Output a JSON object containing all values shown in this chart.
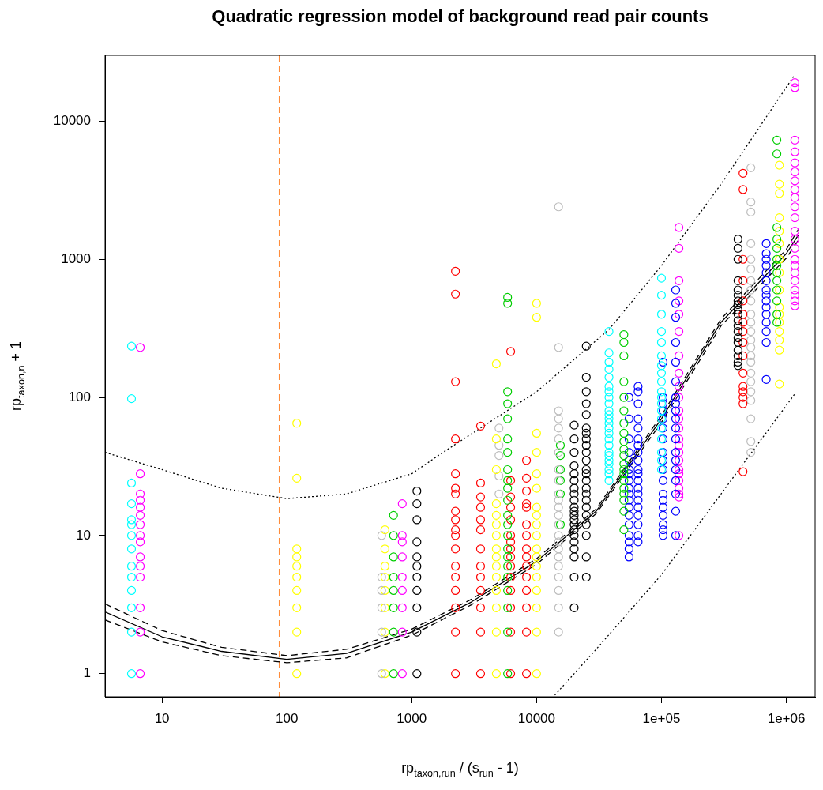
{
  "chart_data": {
    "type": "scatter",
    "title": "Quadratic regression model of background read pair counts",
    "xlabel": "rp$_{taxon,run}$ / (s$_{run}$ - 1)",
    "ylabel": "rp$_{taxon,n}$ + 1",
    "log": "xy",
    "grid": false,
    "legend": false,
    "marker": "circle",
    "xlim": [
      3.5,
      1700000
    ],
    "ylim": [
      0.68,
      30000
    ],
    "xticks": [
      10,
      100,
      1000,
      10000,
      {
        "value": 100000,
        "label": "1e+05"
      },
      {
        "value": 1000000,
        "label": "1e+06"
      }
    ],
    "yticks": [
      1,
      10,
      100,
      1000,
      10000
    ],
    "ref_lines": [
      {
        "axis": "x",
        "value": 87,
        "color": "#ff8c3a",
        "line_style": "dashed"
      }
    ],
    "series": [
      {
        "color": "#00ffff",
        "x": [
          5.7,
          5.7,
          5.7,
          5.7,
          5.7,
          5.7,
          5.7,
          5.7,
          5.7,
          5.7,
          5.7,
          5.7,
          5.7,
          5.7
        ],
        "values": [
          1,
          2,
          3,
          4,
          5,
          6,
          8,
          10,
          12,
          13,
          17,
          24,
          98,
          235
        ]
      },
      {
        "color": "#ff00ff",
        "x": [
          6.7,
          6.7,
          6.7,
          6.7,
          6.7,
          6.7,
          6.7,
          6.7,
          6.7,
          6.7,
          6.7,
          6.7,
          6.7,
          6.7,
          6.7
        ],
        "values": [
          1,
          2,
          3,
          5,
          6,
          7,
          9,
          10,
          12,
          14,
          16,
          18,
          20,
          28,
          230
        ]
      },
      {
        "color": "#ffff00",
        "x": [
          120,
          120,
          120,
          120,
          120,
          120,
          120,
          120,
          120,
          120
        ],
        "values": [
          1,
          2,
          3,
          4,
          5,
          6,
          7,
          8,
          26,
          65
        ]
      },
      {
        "color": "#bebebe",
        "x": [
          575,
          575,
          575,
          575,
          575,
          575
        ],
        "values": [
          1,
          2,
          3,
          4,
          5,
          10
        ]
      },
      {
        "color": "#ffff00",
        "x": [
          610,
          610,
          610,
          610,
          610,
          610,
          610,
          610
        ],
        "values": [
          1,
          2,
          3,
          4,
          5,
          6,
          8,
          11
        ]
      },
      {
        "color": "#00cd00",
        "x": [
          715,
          715,
          715,
          715,
          715,
          715,
          715,
          715
        ],
        "values": [
          1,
          2,
          3,
          4,
          5,
          7,
          10,
          14
        ]
      },
      {
        "color": "#ff00ff",
        "x": [
          840,
          840,
          840,
          840,
          840,
          840,
          840,
          840,
          840
        ],
        "values": [
          1,
          2,
          3,
          4,
          5,
          7,
          9,
          10,
          17
        ]
      },
      {
        "color": "#000000",
        "x": [
          1100,
          1100,
          1100,
          1100,
          1100,
          1100,
          1100,
          1100,
          1100,
          1100,
          1100
        ],
        "values": [
          1,
          2,
          3,
          4,
          5,
          6,
          7,
          9,
          13,
          17,
          21
        ]
      },
      {
        "color": "#ff0000",
        "x": [
          2240,
          2240,
          2240,
          2240,
          2240,
          2240,
          2240,
          2240,
          2240,
          2240,
          2240,
          2240,
          2240,
          2240,
          2240,
          2240,
          2240,
          2240
        ],
        "values": [
          1,
          2,
          3,
          4,
          5,
          6,
          8,
          10,
          11,
          13,
          15,
          20,
          22,
          28,
          50,
          130,
          560,
          820
        ]
      },
      {
        "color": "#ff0000",
        "x": [
          3560,
          3560,
          3560,
          3560,
          3560,
          3560,
          3560,
          3560,
          3560,
          3560,
          3560,
          3560,
          3560
        ],
        "values": [
          1,
          2,
          3,
          4,
          5,
          6,
          8,
          11,
          13,
          16,
          19,
          24,
          62
        ]
      },
      {
        "color": "#ffff00",
        "x": [
          4760,
          4760,
          4760,
          4760,
          4760,
          4760,
          4760,
          4760,
          4760,
          4760,
          4760,
          4760,
          4760,
          4760,
          4760
        ],
        "values": [
          1,
          2,
          3,
          4,
          5,
          6,
          7,
          8,
          10,
          12,
          14,
          17,
          30,
          50,
          175
        ]
      },
      {
        "color": "#bebebe",
        "x": [
          5000,
          5000,
          5000,
          5000,
          5000
        ],
        "values": [
          20,
          27,
          38,
          45,
          60
        ]
      },
      {
        "color": "#00cd00",
        "x": [
          5860,
          5860,
          5860,
          5860,
          5860,
          5860,
          5860,
          5860,
          5860,
          5860,
          5860,
          5860,
          5860,
          5860,
          5860,
          5860,
          5860,
          5860,
          5860,
          5860,
          5860,
          5860
        ],
        "values": [
          1,
          2,
          3,
          4,
          5,
          6,
          7,
          8,
          10,
          12,
          14,
          18,
          22,
          25,
          30,
          40,
          50,
          70,
          90,
          110,
          480,
          530
        ]
      },
      {
        "color": "#ff0000",
        "x": [
          6200,
          6200,
          6200,
          6200,
          6200,
          6200,
          6200,
          6200,
          6200,
          6200,
          6200,
          6200,
          6200,
          6200,
          6200
        ],
        "values": [
          1,
          2,
          3,
          4,
          5,
          6,
          7,
          8,
          9,
          10,
          13,
          16,
          19,
          25,
          215
        ]
      },
      {
        "color": "#ff0000",
        "x": [
          8300,
          8300,
          8300,
          8300,
          8300,
          8300,
          8300,
          8300,
          8300,
          8300,
          8300,
          8300,
          8300,
          8300,
          8300
        ],
        "values": [
          1,
          2,
          3,
          4,
          5,
          6,
          7,
          8,
          10,
          12,
          16,
          17,
          21,
          26,
          35
        ]
      },
      {
        "color": "#ffff00",
        "x": [
          10000,
          10000,
          10000,
          10000,
          10000,
          10000,
          10000,
          10000,
          10000,
          10000,
          10000,
          10000,
          10000,
          10000,
          10000,
          10000,
          10000,
          10000
        ],
        "values": [
          1,
          2,
          3,
          4,
          5,
          6,
          7,
          8,
          10,
          12,
          14,
          16,
          22,
          28,
          40,
          55,
          380,
          480
        ]
      },
      {
        "color": "#bebebe",
        "x": [
          15000,
          15000,
          15000,
          15000,
          15000,
          15000,
          15000,
          15000,
          15000,
          15000,
          15000,
          15000,
          15000,
          15000,
          15000,
          15000,
          15000,
          15000,
          15000,
          15000,
          15000,
          15000,
          15000
        ],
        "values": [
          2,
          3,
          4,
          5,
          6,
          7,
          8,
          9,
          10,
          12,
          14,
          16,
          18,
          20,
          25,
          30,
          40,
          50,
          60,
          70,
          80,
          230,
          2400
        ]
      },
      {
        "color": "#00cd00",
        "x": [
          15500,
          15500,
          15500,
          15500,
          15500,
          15500
        ],
        "values": [
          12,
          20,
          25,
          30,
          38,
          45
        ]
      },
      {
        "color": "#000000",
        "x": [
          20000,
          20000,
          20000,
          20000,
          20000,
          20000,
          20000,
          20000,
          20000,
          20000,
          20000,
          20000,
          20000,
          20000,
          20000,
          20000,
          20000,
          20000,
          20000,
          20000,
          20000
        ],
        "values": [
          3,
          5,
          7,
          8,
          9,
          10,
          11,
          12,
          13,
          14,
          15,
          16,
          18,
          20,
          22,
          25,
          28,
          32,
          40,
          50,
          63
        ]
      },
      {
        "color": "#000000",
        "x": [
          25000,
          25000,
          25000,
          25000,
          25000,
          25000,
          25000,
          25000,
          25000,
          25000,
          25000,
          25000,
          25000,
          25000,
          25000,
          25000,
          25000,
          25000,
          25000,
          25000,
          25000,
          25000,
          25000
        ],
        "values": [
          5,
          7,
          10,
          12,
          14,
          16,
          18,
          20,
          22,
          25,
          28,
          30,
          35,
          40,
          45,
          50,
          55,
          60,
          75,
          90,
          110,
          140,
          235
        ]
      },
      {
        "color": "#00ffff",
        "x": [
          38000,
          38000,
          38000,
          38000,
          38000,
          38000,
          38000,
          38000,
          38000,
          38000,
          38000,
          38000,
          38000,
          38000,
          38000,
          38000,
          38000,
          38000,
          38000,
          38000,
          38000,
          38000,
          38000,
          38000
        ],
        "values": [
          25,
          28,
          30,
          33,
          35,
          38,
          40,
          45,
          50,
          55,
          60,
          65,
          70,
          75,
          80,
          90,
          100,
          110,
          120,
          140,
          160,
          180,
          210,
          300
        ]
      },
      {
        "color": "#00cd00",
        "x": [
          50000,
          50000,
          50000,
          50000,
          50000,
          50000,
          50000,
          50000,
          50000,
          50000,
          50000,
          50000,
          50000,
          50000,
          50000,
          50000,
          50000,
          50000,
          50000,
          50000
        ],
        "values": [
          11,
          15,
          18,
          20,
          22,
          25,
          28,
          30,
          33,
          38,
          42,
          48,
          55,
          65,
          80,
          100,
          130,
          200,
          250,
          285
        ]
      },
      {
        "color": "#0000ff",
        "x": [
          55000,
          55000,
          55000,
          55000,
          55000,
          55000,
          55000,
          55000,
          55000,
          55000,
          55000,
          55000,
          55000,
          55000,
          55000,
          55000,
          55000,
          55000
        ],
        "values": [
          7,
          8,
          9,
          10,
          12,
          14,
          16,
          18,
          20,
          22,
          25,
          28,
          30,
          35,
          40,
          50,
          70,
          100
        ]
      },
      {
        "color": "#0000ff",
        "x": [
          65000,
          65000,
          65000,
          65000,
          65000,
          65000,
          65000,
          65000,
          65000,
          65000,
          65000,
          65000,
          65000,
          65000,
          65000,
          65000,
          65000,
          65000,
          65000,
          65000
        ],
        "values": [
          9,
          10,
          12,
          14,
          16,
          18,
          20,
          22,
          25,
          28,
          30,
          35,
          40,
          45,
          50,
          60,
          70,
          90,
          110,
          120
        ]
      },
      {
        "color": "#00ffff",
        "x": [
          100000,
          100000,
          100000,
          100000,
          100000,
          100000,
          100000,
          100000,
          100000,
          100000,
          100000,
          100000,
          100000,
          100000,
          100000,
          100000,
          100000,
          100000,
          100000
        ],
        "values": [
          30,
          35,
          40,
          50,
          60,
          70,
          80,
          90,
          100,
          110,
          130,
          150,
          170,
          200,
          250,
          300,
          400,
          550,
          730
        ]
      },
      {
        "color": "#0000ff",
        "x": [
          103000,
          103000,
          103000,
          103000,
          103000,
          103000,
          103000,
          103000,
          103000,
          103000,
          103000,
          103000,
          103000,
          103000,
          103000,
          103000,
          103000,
          103000
        ],
        "values": [
          10,
          11,
          12,
          14,
          16,
          18,
          20,
          25,
          30,
          35,
          40,
          50,
          60,
          70,
          80,
          90,
          100,
          180
        ]
      },
      {
        "color": "#0000ff",
        "x": [
          130000,
          130000,
          130000,
          130000,
          130000,
          130000,
          130000,
          130000,
          130000,
          130000,
          130000,
          130000,
          130000,
          130000,
          130000,
          130000,
          130000,
          130000,
          130000
        ],
        "values": [
          10,
          15,
          20,
          25,
          30,
          35,
          40,
          50,
          60,
          70,
          80,
          90,
          100,
          130,
          180,
          250,
          380,
          480,
          600
        ]
      },
      {
        "color": "#ff00ff",
        "x": [
          138000,
          138000,
          138000,
          138000,
          138000,
          138000,
          138000,
          138000,
          138000,
          138000,
          138000,
          138000,
          138000,
          138000,
          138000,
          138000,
          138000,
          138000,
          138000,
          138000,
          138000,
          138000,
          138000,
          138000
        ],
        "values": [
          10,
          19,
          20,
          22,
          25,
          28,
          30,
          35,
          40,
          45,
          50,
          60,
          70,
          80,
          100,
          120,
          150,
          200,
          300,
          400,
          500,
          700,
          1200,
          1700
        ]
      },
      {
        "color": "#000000",
        "x": [
          410000,
          410000,
          410000,
          410000,
          410000,
          410000,
          410000,
          410000,
          410000,
          410000,
          410000,
          410000,
          410000,
          410000,
          410000,
          410000,
          410000,
          410000,
          410000
        ],
        "values": [
          170,
          180,
          200,
          220,
          250,
          270,
          300,
          330,
          360,
          400,
          430,
          470,
          500,
          550,
          600,
          700,
          1000,
          1200,
          1400
        ]
      },
      {
        "color": "#ff0000",
        "x": [
          450000,
          450000,
          450000,
          450000,
          450000,
          450000,
          450000,
          450000,
          450000,
          450000,
          450000,
          450000,
          450000,
          450000,
          450000,
          450000
        ],
        "values": [
          29,
          90,
          100,
          110,
          120,
          150,
          200,
          250,
          300,
          350,
          400,
          500,
          700,
          1000,
          3200,
          4200
        ]
      },
      {
        "color": "#bebebe",
        "x": [
          520000,
          520000,
          520000,
          520000,
          520000,
          520000,
          520000,
          520000,
          520000,
          520000,
          520000,
          520000,
          520000,
          520000,
          520000,
          520000,
          520000,
          520000,
          520000,
          520000,
          520000,
          520000,
          520000
        ],
        "values": [
          40,
          48,
          70,
          95,
          110,
          130,
          150,
          180,
          200,
          230,
          260,
          300,
          350,
          400,
          500,
          600,
          700,
          850,
          1000,
          1300,
          2200,
          2600,
          4600
        ]
      },
      {
        "color": "#0000ff",
        "x": [
          690000,
          690000,
          690000,
          690000,
          690000,
          690000,
          690000,
          690000,
          690000,
          690000,
          690000,
          690000,
          690000,
          690000,
          690000
        ],
        "values": [
          135,
          250,
          300,
          350,
          400,
          450,
          500,
          550,
          600,
          700,
          800,
          900,
          1000,
          1100,
          1300
        ]
      },
      {
        "color": "#00cd00",
        "x": [
          840000,
          840000,
          840000,
          840000,
          840000,
          840000,
          840000,
          840000,
          840000,
          840000,
          840000,
          840000,
          840000
        ],
        "values": [
          350,
          400,
          500,
          600,
          700,
          800,
          900,
          1000,
          1200,
          1400,
          1700,
          5800,
          7300
        ]
      },
      {
        "color": "#ffff00",
        "x": [
          880000,
          880000,
          880000,
          880000,
          880000,
          880000,
          880000,
          880000,
          880000,
          880000,
          880000,
          880000,
          880000,
          880000,
          880000,
          880000
        ],
        "values": [
          125,
          220,
          260,
          300,
          350,
          400,
          450,
          600,
          800,
          1000,
          1300,
          1600,
          2000,
          3000,
          3500,
          4800
        ]
      },
      {
        "color": "#ff00ff",
        "x": [
          1170000,
          1170000,
          1170000,
          1170000,
          1170000,
          1170000,
          1170000,
          1170000,
          1170000,
          1170000,
          1170000,
          1170000,
          1170000,
          1170000,
          1170000,
          1170000,
          1170000,
          1170000,
          1170000,
          1170000,
          1170000,
          1170000
        ],
        "values": [
          460,
          500,
          550,
          600,
          700,
          800,
          900,
          1000,
          1200,
          1400,
          1600,
          2000,
          2400,
          2800,
          3200,
          3700,
          4300,
          5000,
          6000,
          7300,
          17500,
          19000
        ]
      },
      {
        "type": "line",
        "marker": "none",
        "line_style": "solid",
        "color": "#000000",
        "x": [
          3.5,
          10,
          30,
          100,
          300,
          1000,
          3000,
          10000,
          30000,
          100000,
          300000,
          1000000,
          1250000
        ],
        "values": [
          2.8,
          1.85,
          1.45,
          1.27,
          1.4,
          2.0,
          3.3,
          6.5,
          15,
          70,
          350,
          1100,
          1500
        ]
      },
      {
        "type": "line",
        "marker": "none",
        "line_style": "dashed",
        "color": "#000000",
        "x": [
          3.5,
          10,
          30,
          100,
          300,
          1000,
          3000,
          10000,
          30000,
          100000,
          300000,
          1000000,
          1250000
        ],
        "values": [
          3.2,
          2.05,
          1.55,
          1.35,
          1.5,
          2.1,
          3.45,
          6.8,
          15.6,
          74,
          370,
          1180,
          1650
        ]
      },
      {
        "type": "line",
        "marker": "none",
        "line_style": "dashed",
        "color": "#000000",
        "x": [
          3.5,
          10,
          30,
          100,
          300,
          1000,
          3000,
          10000,
          30000,
          100000,
          300000,
          1000000,
          1250000
        ],
        "values": [
          2.45,
          1.7,
          1.35,
          1.2,
          1.3,
          1.9,
          3.15,
          6.2,
          14.4,
          66,
          330,
          1020,
          1380
        ]
      },
      {
        "type": "line",
        "marker": "none",
        "line_style": "dotted",
        "color": "#000000",
        "x": [
          3.5,
          10,
          30,
          100,
          300,
          1000,
          1780,
          10000,
          38000,
          100000,
          300000,
          1160000
        ],
        "values": [
          40,
          30,
          22,
          18.5,
          20,
          28,
          40,
          110,
          310,
          900,
          3500,
          21500
        ]
      },
      {
        "type": "line",
        "marker": "none",
        "line_style": "dotted",
        "color": "#000000",
        "x": [
          14000,
          30000,
          100000,
          300000,
          1160000
        ],
        "values": [
          0.7,
          1.5,
          5.2,
          20,
          105
        ]
      }
    ]
  }
}
